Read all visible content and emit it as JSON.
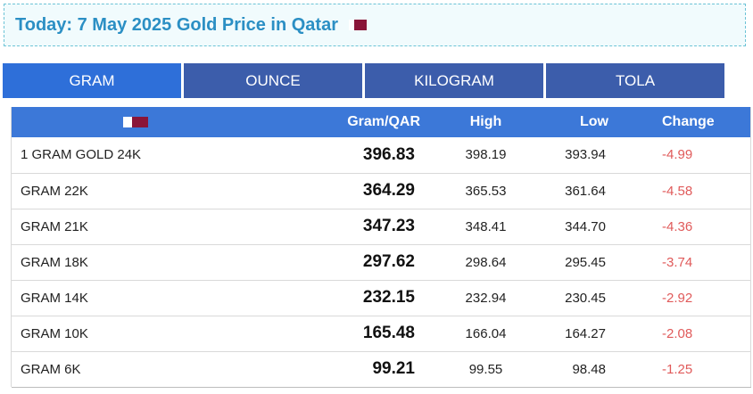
{
  "header": {
    "title": "Today: 7 May 2025 Gold Price in Qatar",
    "flag_icon": "qatar-flag-icon"
  },
  "tabs": [
    {
      "label": "GRAM",
      "active": true
    },
    {
      "label": "OUNCE",
      "active": false
    },
    {
      "label": "KILOGRAM",
      "active": false
    },
    {
      "label": "TOLA",
      "active": false
    }
  ],
  "table": {
    "columns": [
      "",
      "Gram/QAR",
      "High",
      "Low",
      "Change"
    ],
    "rows": [
      {
        "name": "1 GRAM GOLD 24K",
        "price": "396.83",
        "high": "398.19",
        "low": "393.94",
        "change": "-4.99"
      },
      {
        "name": "GRAM 22K",
        "price": "364.29",
        "high": "365.53",
        "low": "361.64",
        "change": "-4.58"
      },
      {
        "name": "GRAM 21K",
        "price": "347.23",
        "high": "348.41",
        "low": "344.70",
        "change": "-4.36"
      },
      {
        "name": "GRAM 18K",
        "price": "297.62",
        "high": "298.64",
        "low": "295.45",
        "change": "-3.74"
      },
      {
        "name": "GRAM 14K",
        "price": "232.15",
        "high": "232.94",
        "low": "230.45",
        "change": "-2.92"
      },
      {
        "name": "GRAM 10K",
        "price": "165.48",
        "high": "166.04",
        "low": "164.27",
        "change": "-2.08"
      },
      {
        "name": "GRAM 6K",
        "price": "99.21",
        "high": "99.55",
        "low": "98.48",
        "change": "-1.25"
      }
    ]
  },
  "colors": {
    "accent": "#2e6fd9",
    "tab": "#3c5dab",
    "header_row": "#3c78d8",
    "negative": "#e05a5a",
    "flag": "#8a1538"
  }
}
